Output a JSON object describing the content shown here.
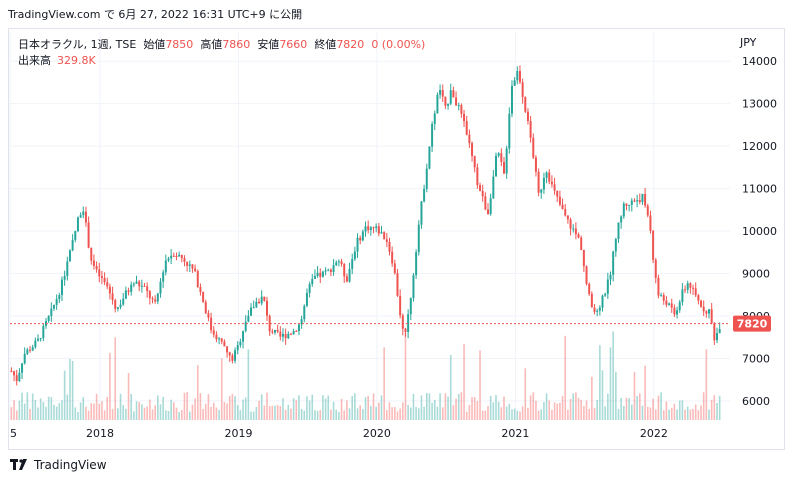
{
  "header": {
    "publish_line": "TradingView.com で 6月 27, 2022 16:31 UTC+9 に公開"
  },
  "legend": {
    "symbol": "日本オラクル, 1週, TSE",
    "open_label": "始値",
    "open": "7850",
    "high_label": "高値",
    "high": "7860",
    "low_label": "安値",
    "low": "7660",
    "close_label": "終値",
    "close": "7820",
    "change": "0 (0.00%)",
    "volume_label": "出来高",
    "volume": "329.8K"
  },
  "axis": {
    "currency": "JPY"
  },
  "price_tag": "7820",
  "footer": {
    "brand": "TradingView"
  },
  "colors": {
    "up": "#26a69a",
    "down": "#ef5350",
    "last_line": "#ef5350"
  },
  "chart_data": {
    "type": "candlestick",
    "interval": "1週",
    "y_ticks": [
      6000,
      7000,
      8000,
      9000,
      10000,
      11000,
      12000,
      13000,
      14000
    ],
    "x_ticks": [
      "5",
      "2018",
      "2019",
      "2020",
      "2021",
      "2022"
    ],
    "x_tick_pos": [
      2017.35,
      2018.0,
      2019.0,
      2020.0,
      2021.0,
      2022.0
    ],
    "x_range": [
      2017.35,
      2022.55
    ],
    "y_range": [
      5550,
      14500
    ],
    "last_price": 7820,
    "close_path": [
      [
        2017.36,
        6700
      ],
      [
        2017.4,
        6500
      ],
      [
        2017.45,
        7100
      ],
      [
        2017.55,
        7400
      ],
      [
        2017.65,
        8100
      ],
      [
        2017.72,
        8700
      ],
      [
        2017.8,
        9700
      ],
      [
        2017.85,
        10400
      ],
      [
        2017.88,
        10550
      ],
      [
        2017.93,
        9400
      ],
      [
        2017.97,
        9050
      ],
      [
        2018.05,
        8700
      ],
      [
        2018.12,
        8150
      ],
      [
        2018.18,
        8500
      ],
      [
        2018.25,
        8800
      ],
      [
        2018.32,
        8650
      ],
      [
        2018.4,
        8250
      ],
      [
        2018.47,
        9300
      ],
      [
        2018.53,
        9500
      ],
      [
        2018.6,
        9350
      ],
      [
        2018.68,
        9050
      ],
      [
        2018.75,
        8300
      ],
      [
        2018.8,
        7700
      ],
      [
        2018.88,
        7350
      ],
      [
        2018.95,
        6950
      ],
      [
        2019.0,
        7300
      ],
      [
        2019.05,
        7900
      ],
      [
        2019.12,
        8300
      ],
      [
        2019.18,
        8450
      ],
      [
        2019.22,
        7700
      ],
      [
        2019.3,
        7500
      ],
      [
        2019.4,
        7650
      ],
      [
        2019.45,
        7850
      ],
      [
        2019.5,
        8600
      ],
      [
        2019.55,
        8900
      ],
      [
        2019.65,
        9050
      ],
      [
        2019.72,
        9350
      ],
      [
        2019.78,
        8850
      ],
      [
        2019.85,
        9700
      ],
      [
        2019.92,
        10100
      ],
      [
        2020.0,
        10050
      ],
      [
        2020.07,
        9800
      ],
      [
        2020.12,
        9200
      ],
      [
        2020.17,
        8000
      ],
      [
        2020.2,
        7400
      ],
      [
        2020.25,
        8600
      ],
      [
        2020.3,
        10100
      ],
      [
        2020.35,
        11300
      ],
      [
        2020.4,
        12500
      ],
      [
        2020.45,
        13400
      ],
      [
        2020.5,
        12800
      ],
      [
        2020.53,
        13400
      ],
      [
        2020.6,
        12800
      ],
      [
        2020.65,
        12300
      ],
      [
        2020.72,
        11200
      ],
      [
        2020.8,
        10400
      ],
      [
        2020.87,
        11900
      ],
      [
        2020.92,
        11300
      ],
      [
        2020.97,
        13400
      ],
      [
        2021.02,
        13800
      ],
      [
        2021.07,
        12900
      ],
      [
        2021.12,
        12000
      ],
      [
        2021.17,
        10800
      ],
      [
        2021.22,
        11500
      ],
      [
        2021.27,
        11000
      ],
      [
        2021.35,
        10400
      ],
      [
        2021.42,
        10000
      ],
      [
        2021.47,
        9750
      ],
      [
        2021.52,
        8600
      ],
      [
        2021.57,
        8000
      ],
      [
        2021.63,
        8400
      ],
      [
        2021.68,
        8900
      ],
      [
        2021.72,
        9800
      ],
      [
        2021.78,
        10600
      ],
      [
        2021.85,
        10700
      ],
      [
        2021.92,
        10800
      ],
      [
        2021.97,
        10200
      ],
      [
        2022.0,
        9200
      ],
      [
        2022.03,
        8500
      ],
      [
        2022.1,
        8300
      ],
      [
        2022.15,
        8000
      ],
      [
        2022.2,
        8500
      ],
      [
        2022.25,
        8800
      ],
      [
        2022.3,
        8450
      ],
      [
        2022.35,
        8200
      ],
      [
        2022.4,
        8100
      ],
      [
        2022.44,
        7450
      ],
      [
        2022.48,
        7820
      ]
    ]
  }
}
